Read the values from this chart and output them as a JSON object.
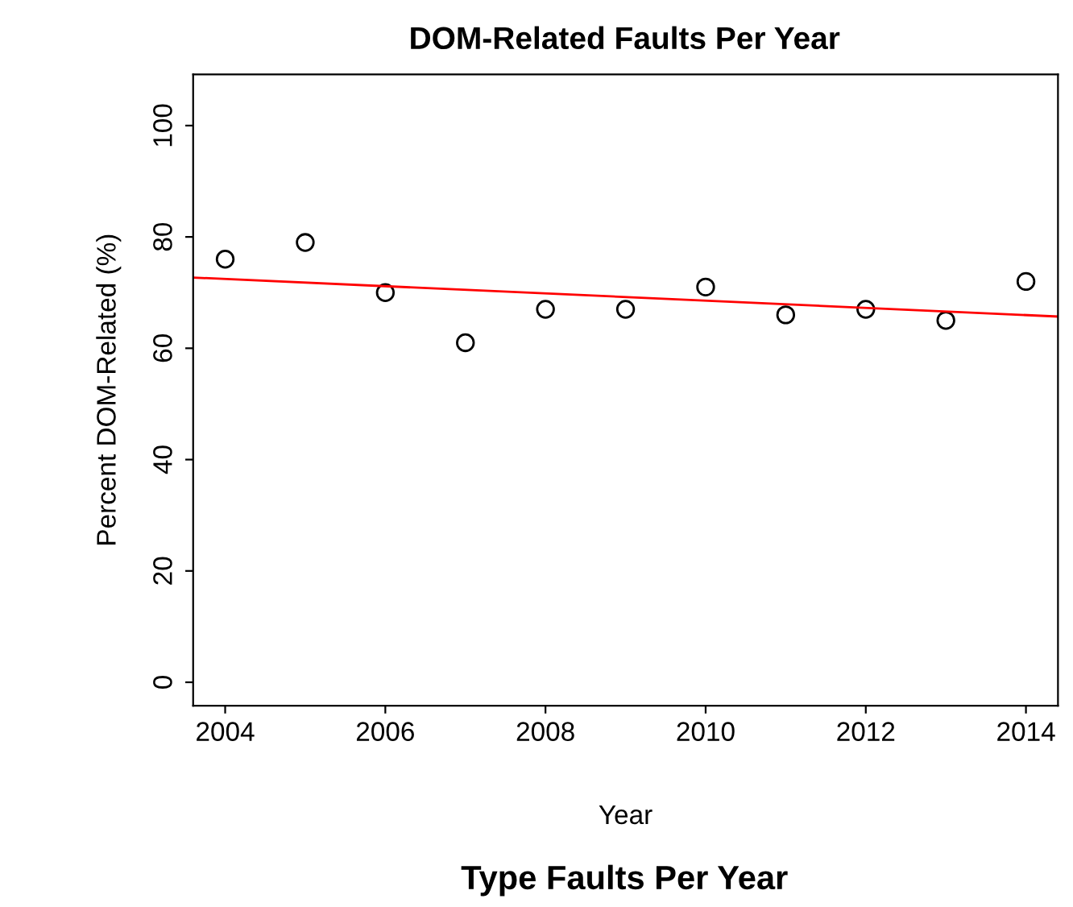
{
  "chart_data": {
    "type": "scatter",
    "title": "DOM-Related Faults Per Year",
    "xlabel": "Year",
    "ylabel": "Percent DOM-Related (%)",
    "annotations": [
      "Type Faults Per Year"
    ],
    "x": [
      2004,
      2005,
      2006,
      2007,
      2008,
      2009,
      2010,
      2011,
      2012,
      2013,
      2014
    ],
    "series": [
      {
        "color": "#000000",
        "marker": "circle",
        "values": [
          76,
          79,
          70,
          61,
          67,
          67,
          71,
          66,
          67,
          65,
          72
        ]
      },
      {
        "type": "line",
        "color": "#ff0000",
        "x": [
          2003.6,
          2014.4
        ],
        "values": [
          72.7,
          65.7
        ]
      }
    ],
    "xlim": [
      2003.6,
      2014.4
    ],
    "ylim": [
      -4.2,
      109.2
    ],
    "xticks": [
      2004,
      2006,
      2008,
      2010,
      2012,
      2014
    ],
    "yticks": [
      0,
      20,
      40,
      60,
      80,
      100
    ],
    "grid": false,
    "legend": false
  }
}
